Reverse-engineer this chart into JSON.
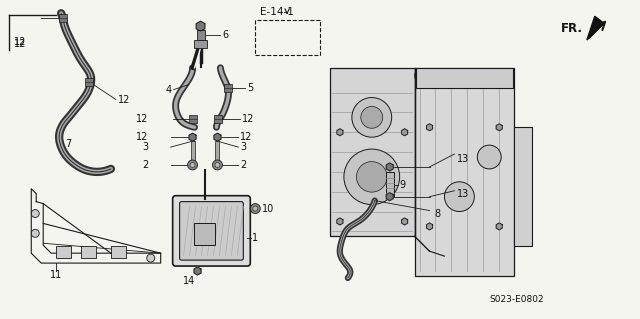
{
  "bg_color": "#f5f5f0",
  "fig_width": 6.4,
  "fig_height": 3.19,
  "dpi": 100,
  "diagram_code": "S023-E0802",
  "fr_label": "FR.",
  "e14_label": "E-14-1",
  "line_color": "#1a1a1a",
  "label_color": "#111111",
  "font_size": 7.0
}
